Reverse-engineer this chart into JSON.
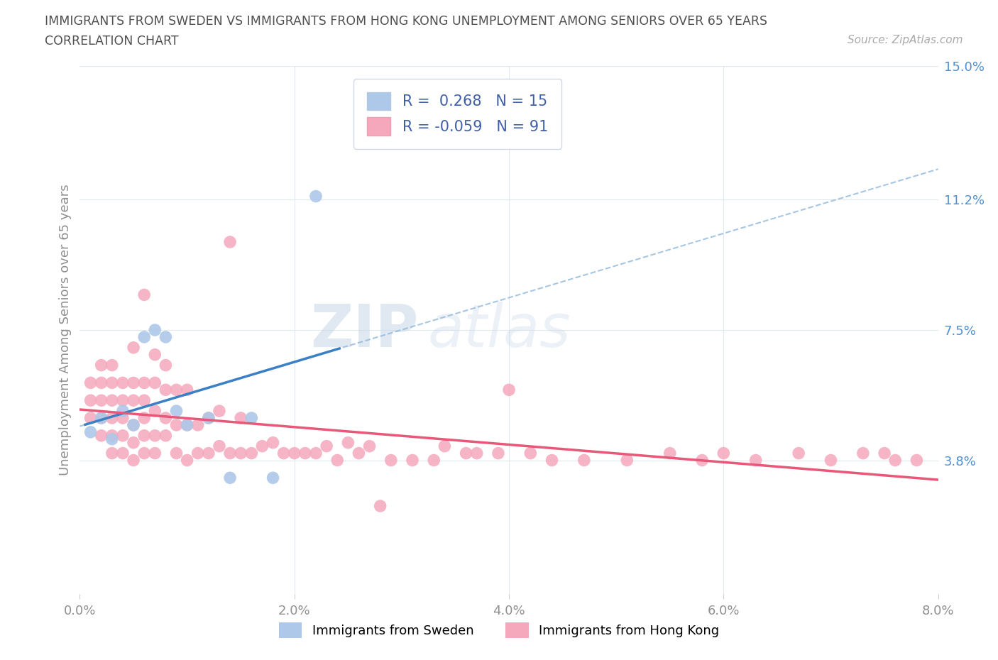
{
  "title_line1": "IMMIGRANTS FROM SWEDEN VS IMMIGRANTS FROM HONG KONG UNEMPLOYMENT AMONG SENIORS OVER 65 YEARS",
  "title_line2": "CORRELATION CHART",
  "source_text": "Source: ZipAtlas.com",
  "ylabel": "Unemployment Among Seniors over 65 years",
  "watermark_text": "ZIP",
  "watermark_text2": "atlas",
  "xlim": [
    0.0,
    0.08
  ],
  "ylim": [
    0.0,
    0.15
  ],
  "xtick_labels": [
    "0.0%",
    "",
    "2.0%",
    "",
    "4.0%",
    "",
    "6.0%",
    "",
    "8.0%"
  ],
  "xtick_vals": [
    0.0,
    0.01,
    0.02,
    0.03,
    0.04,
    0.05,
    0.06,
    0.07,
    0.08
  ],
  "xtick_display": [
    "0.0%",
    "2.0%",
    "4.0%",
    "6.0%",
    "8.0%"
  ],
  "xtick_display_vals": [
    0.0,
    0.02,
    0.04,
    0.06,
    0.08
  ],
  "ytick_labels": [
    "3.8%",
    "7.5%",
    "11.2%",
    "15.0%"
  ],
  "ytick_vals": [
    0.038,
    0.075,
    0.112,
    0.15
  ],
  "grid_ytick_vals": [
    0.038,
    0.075,
    0.112,
    0.15
  ],
  "grid_xtick_vals": [
    0.02,
    0.04,
    0.06,
    0.08
  ],
  "sweden_dot_color": "#adc8e8",
  "hk_dot_color": "#f5a8bc",
  "sweden_line_color": "#3b7fc4",
  "sweden_dash_color": "#90b8dc",
  "hk_line_color": "#e85878",
  "legend_text_color": "#4060a8",
  "sweden_R": "0.268",
  "sweden_N": "15",
  "hk_R": "-0.059",
  "hk_N": "91",
  "sweden_x": [
    0.001,
    0.002,
    0.003,
    0.004,
    0.005,
    0.006,
    0.007,
    0.008,
    0.009,
    0.01,
    0.012,
    0.014,
    0.016,
    0.018,
    0.022
  ],
  "sweden_y": [
    0.046,
    0.05,
    0.044,
    0.052,
    0.048,
    0.073,
    0.075,
    0.073,
    0.052,
    0.048,
    0.05,
    0.033,
    0.05,
    0.033,
    0.113
  ],
  "hk_x": [
    0.001,
    0.001,
    0.001,
    0.002,
    0.002,
    0.002,
    0.002,
    0.002,
    0.003,
    0.003,
    0.003,
    0.003,
    0.003,
    0.003,
    0.004,
    0.004,
    0.004,
    0.004,
    0.004,
    0.005,
    0.005,
    0.005,
    0.005,
    0.005,
    0.005,
    0.006,
    0.006,
    0.006,
    0.006,
    0.006,
    0.006,
    0.007,
    0.007,
    0.007,
    0.007,
    0.007,
    0.008,
    0.008,
    0.008,
    0.008,
    0.009,
    0.009,
    0.009,
    0.01,
    0.01,
    0.01,
    0.011,
    0.011,
    0.012,
    0.012,
    0.013,
    0.013,
    0.014,
    0.014,
    0.015,
    0.015,
    0.016,
    0.017,
    0.018,
    0.019,
    0.02,
    0.021,
    0.022,
    0.023,
    0.024,
    0.025,
    0.026,
    0.027,
    0.028,
    0.029,
    0.031,
    0.033,
    0.034,
    0.036,
    0.037,
    0.039,
    0.042,
    0.044,
    0.047,
    0.051,
    0.055,
    0.058,
    0.06,
    0.063,
    0.067,
    0.07,
    0.073,
    0.076,
    0.04,
    0.075,
    0.078
  ],
  "hk_y": [
    0.05,
    0.055,
    0.06,
    0.045,
    0.05,
    0.055,
    0.06,
    0.065,
    0.04,
    0.045,
    0.05,
    0.055,
    0.06,
    0.065,
    0.04,
    0.045,
    0.05,
    0.055,
    0.06,
    0.038,
    0.043,
    0.048,
    0.055,
    0.06,
    0.07,
    0.04,
    0.045,
    0.05,
    0.055,
    0.06,
    0.085,
    0.04,
    0.045,
    0.052,
    0.06,
    0.068,
    0.045,
    0.05,
    0.058,
    0.065,
    0.04,
    0.048,
    0.058,
    0.038,
    0.048,
    0.058,
    0.04,
    0.048,
    0.04,
    0.05,
    0.042,
    0.052,
    0.04,
    0.1,
    0.04,
    0.05,
    0.04,
    0.042,
    0.043,
    0.04,
    0.04,
    0.04,
    0.04,
    0.042,
    0.038,
    0.043,
    0.04,
    0.042,
    0.025,
    0.038,
    0.038,
    0.038,
    0.042,
    0.04,
    0.04,
    0.04,
    0.04,
    0.038,
    0.038,
    0.038,
    0.04,
    0.038,
    0.04,
    0.038,
    0.04,
    0.038,
    0.04,
    0.038,
    0.058,
    0.04,
    0.038
  ],
  "background_color": "#ffffff",
  "title_color": "#505050",
  "axis_label_color": "#909090",
  "grid_color": "#e0e8f0",
  "right_tick_color": "#5090d0"
}
